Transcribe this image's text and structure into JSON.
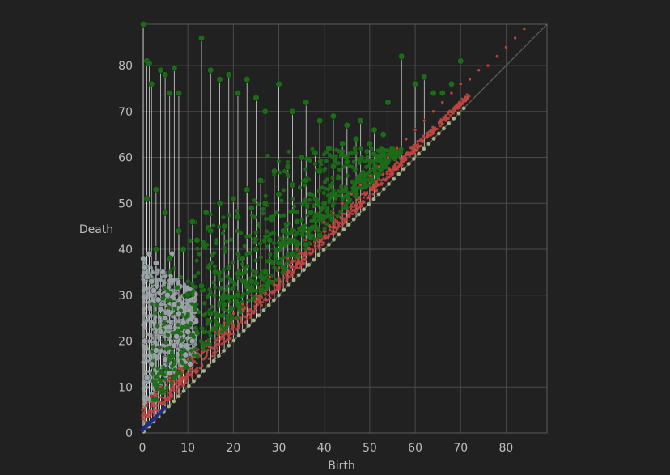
{
  "chart_data": {
    "type": "scatter",
    "title": "",
    "xlabel": "Birth",
    "ylabel": "Death",
    "xlim": [
      0,
      89
    ],
    "ylim": [
      0,
      89
    ],
    "x_ticks": [
      0,
      10,
      20,
      30,
      40,
      50,
      60,
      70,
      80
    ],
    "y_ticks": [
      0,
      10,
      20,
      30,
      40,
      50,
      60,
      70,
      80
    ],
    "x_tick_labels": [
      "0",
      "10",
      "20",
      "30",
      "40",
      "50",
      "60",
      "70",
      "80"
    ],
    "y_tick_labels": [
      "0",
      "10",
      "20",
      "30",
      "40",
      "50",
      "60",
      "70",
      "80"
    ],
    "grid": true,
    "diagonal": true,
    "legend": "none",
    "colors": {
      "background": "#212121",
      "grid": "#4a4a4a",
      "axis_text": "#bdbdbd",
      "diagonal": "#6b6b6b",
      "stem": "#f2f2f2",
      "dim0": "#1e2f8a",
      "dim1": "#c0453f",
      "dim2": "#9aa5a8",
      "dim3": "#1c6b18",
      "diag_bead": "#a7b383"
    },
    "series": [
      {
        "values": [
          [
            0,
            0.8
          ],
          [
            0.3,
            1.1
          ],
          [
            0.6,
            1.3
          ],
          [
            0.9,
            1.6
          ],
          [
            1.2,
            1.9
          ],
          [
            1.5,
            2.1
          ],
          [
            1.8,
            2.4
          ],
          [
            2.1,
            2.7
          ],
          [
            2.4,
            2.9
          ],
          [
            2.7,
            3.2
          ],
          [
            3,
            3.5
          ],
          [
            3.3,
            3.7
          ],
          [
            3.6,
            4
          ],
          [
            3.9,
            4.2
          ],
          [
            4.2,
            4.5
          ],
          [
            4.5,
            4.8
          ]
        ]
      },
      {
        "values": [
          [
            0,
            5
          ],
          [
            1,
            6
          ],
          [
            2,
            8
          ],
          [
            3,
            9
          ],
          [
            4,
            10
          ],
          [
            6,
            12
          ],
          [
            8,
            14
          ],
          [
            10,
            16
          ],
          [
            12,
            18
          ],
          [
            14,
            20
          ],
          [
            16,
            22
          ],
          [
            18,
            24
          ],
          [
            20,
            26
          ],
          [
            22,
            28
          ],
          [
            24,
            30
          ],
          [
            26,
            32
          ],
          [
            28,
            34
          ],
          [
            30,
            36
          ],
          [
            32,
            38
          ],
          [
            34,
            40
          ],
          [
            36,
            42
          ],
          [
            38,
            44
          ],
          [
            40,
            46
          ],
          [
            42,
            48
          ],
          [
            44,
            50
          ],
          [
            46,
            52
          ],
          [
            48,
            54
          ],
          [
            50,
            56
          ],
          [
            52,
            58
          ],
          [
            54,
            60
          ],
          [
            56,
            62
          ],
          [
            58,
            64
          ],
          [
            60,
            66
          ],
          [
            62,
            68
          ],
          [
            64,
            70
          ],
          [
            66,
            72
          ],
          [
            68,
            74
          ],
          [
            70,
            76
          ],
          [
            72,
            77
          ],
          [
            74,
            79
          ],
          [
            76,
            80
          ],
          [
            78,
            82
          ],
          [
            80,
            84
          ],
          [
            82,
            86
          ],
          [
            84,
            88
          ]
        ]
      },
      {
        "values": [
          [
            0.2,
            38
          ],
          [
            0.5,
            36
          ],
          [
            1,
            34
          ],
          [
            1.5,
            39
          ],
          [
            2,
            33
          ],
          [
            2.5,
            31
          ],
          [
            3,
            37
          ],
          [
            3.5,
            29
          ],
          [
            4,
            27
          ],
          [
            4.5,
            35
          ],
          [
            5,
            25
          ],
          [
            5.5,
            30
          ],
          [
            6,
            23
          ],
          [
            6.5,
            39
          ],
          [
            7,
            28
          ],
          [
            7.5,
            21
          ],
          [
            8,
            26
          ],
          [
            8.5,
            19
          ],
          [
            9,
            24
          ],
          [
            9.5,
            17
          ],
          [
            10,
            22
          ],
          [
            10.5,
            15
          ],
          [
            11,
            20
          ],
          [
            0.5,
            20
          ],
          [
            1,
            12
          ],
          [
            2,
            15
          ],
          [
            3,
            18
          ],
          [
            4,
            22
          ],
          [
            5,
            16
          ],
          [
            6,
            13
          ],
          [
            7,
            19
          ]
        ]
      },
      {
        "values": [
          [
            0.2,
            89
          ],
          [
            1,
            81
          ],
          [
            1.5,
            80.5
          ],
          [
            2,
            76
          ],
          [
            4,
            79
          ],
          [
            5,
            78
          ],
          [
            6,
            74
          ],
          [
            7,
            79.5
          ],
          [
            8,
            74
          ],
          [
            13,
            86
          ],
          [
            15,
            79
          ],
          [
            17,
            77
          ],
          [
            19,
            78
          ],
          [
            21,
            74
          ],
          [
            23,
            77
          ],
          [
            25,
            73
          ],
          [
            27,
            70
          ],
          [
            30,
            76
          ],
          [
            33,
            70
          ],
          [
            36,
            72
          ],
          [
            39,
            68
          ],
          [
            42,
            69
          ],
          [
            45,
            67
          ],
          [
            48,
            68
          ],
          [
            51,
            66
          ],
          [
            54,
            72
          ],
          [
            57,
            82
          ],
          [
            60,
            76
          ],
          [
            62,
            77.5
          ],
          [
            64,
            74
          ],
          [
            66,
            74
          ],
          [
            68,
            76
          ],
          [
            70,
            81
          ],
          [
            1,
            51
          ],
          [
            3,
            53
          ],
          [
            5,
            48
          ],
          [
            8,
            44
          ],
          [
            11,
            46
          ],
          [
            14,
            48
          ],
          [
            17,
            50
          ],
          [
            20,
            51
          ],
          [
            23,
            53
          ],
          [
            26,
            55
          ],
          [
            29,
            57
          ],
          [
            32,
            58
          ],
          [
            35,
            60
          ],
          [
            38,
            61
          ],
          [
            41,
            62
          ],
          [
            44,
            63
          ],
          [
            47,
            64
          ],
          [
            50,
            63
          ],
          [
            53,
            65
          ],
          [
            3,
            40
          ],
          [
            6,
            38
          ],
          [
            9,
            40
          ],
          [
            12,
            42
          ],
          [
            15,
            44
          ],
          [
            18,
            45
          ],
          [
            21,
            47
          ],
          [
            24,
            49
          ],
          [
            27,
            50
          ],
          [
            30,
            52
          ],
          [
            33,
            54
          ],
          [
            36,
            55
          ],
          [
            39,
            57
          ],
          [
            42,
            58
          ],
          [
            45,
            59
          ],
          [
            10,
            30
          ],
          [
            13,
            32
          ],
          [
            16,
            35
          ],
          [
            19,
            36
          ],
          [
            22,
            38
          ],
          [
            25,
            40
          ],
          [
            28,
            42
          ],
          [
            31,
            44
          ],
          [
            34,
            46
          ],
          [
            37,
            48
          ],
          [
            40,
            50
          ],
          [
            15,
            26
          ],
          [
            18,
            28
          ],
          [
            21,
            30
          ],
          [
            24,
            33
          ],
          [
            27,
            35
          ],
          [
            30,
            37
          ],
          [
            33,
            39
          ],
          [
            36,
            41
          ],
          [
            39,
            43
          ]
        ]
      }
    ]
  }
}
